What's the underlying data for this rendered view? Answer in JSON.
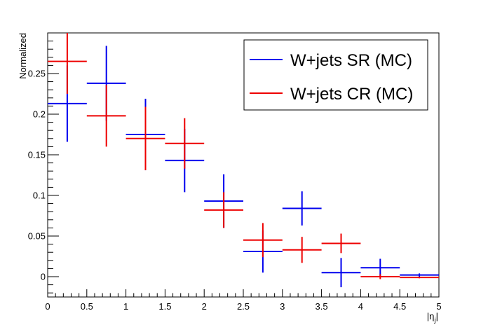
{
  "chart_data": {
    "type": "scatter",
    "xlabel": "|η",
    "xlabel_sub": "j",
    "xlabel_close": "|",
    "ylabel": "Normalized",
    "xlim": [
      0,
      5
    ],
    "ylim": [
      -0.025,
      0.3
    ],
    "x_ticks": [
      0,
      0.5,
      1,
      1.5,
      2,
      2.5,
      3,
      3.5,
      4,
      4.5,
      5
    ],
    "x_tick_labels": [
      "0",
      "0.5",
      "1",
      "1.5",
      "2",
      "2.5",
      "3",
      "3.5",
      "4",
      "4.5",
      "5"
    ],
    "y_ticks": [
      0,
      0.05,
      0.1,
      0.15,
      0.2,
      0.25
    ],
    "y_tick_labels": [
      "0",
      "0.05",
      "0.1",
      "0.15",
      "0.2",
      "0.25"
    ],
    "bin_edges": [
      0,
      0.5,
      1,
      1.5,
      2,
      2.5,
      3,
      3.5,
      4,
      4.5,
      5
    ],
    "grid": false,
    "legend_position": "top-right",
    "series": [
      {
        "name": "W+jets SR (MC)",
        "color": "#0000ee",
        "values": [
          0.213,
          0.238,
          0.175,
          0.143,
          0.093,
          0.031,
          0.084,
          0.005,
          0.011,
          0.002
        ],
        "errors": [
          0.047,
          0.046,
          0.044,
          0.039,
          0.033,
          0.026,
          0.021,
          0.018,
          0.011,
          0.002
        ]
      },
      {
        "name": "W+jets CR (MC)",
        "color": "#ee0000",
        "values": [
          0.265,
          0.198,
          0.17,
          0.164,
          0.082,
          0.045,
          0.033,
          0.041,
          0.0,
          -0.001
        ],
        "errors": [
          0.04,
          0.038,
          0.039,
          0.031,
          0.022,
          0.021,
          0.016,
          0.012,
          0.003,
          0.001
        ]
      }
    ]
  }
}
